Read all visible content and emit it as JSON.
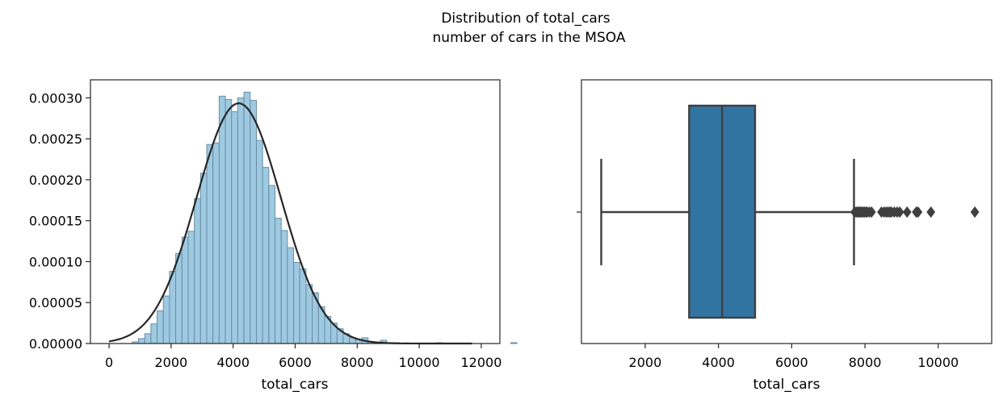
{
  "title": "Distribution of total_cars",
  "subtitle": "number of cars in the MSOA",
  "chart_data": [
    {
      "type": "histogram",
      "xlabel": "total_cars",
      "ylabel": "",
      "xlim": [
        -600,
        12600
      ],
      "ylim": [
        0,
        0.000322
      ],
      "xticks": [
        0,
        2000,
        4000,
        6000,
        8000,
        10000,
        12000
      ],
      "yticks": [
        0,
        5e-05,
        0.0001,
        0.00015,
        0.0002,
        0.00025,
        0.0003
      ],
      "ytick_labels": [
        "0.00000",
        "0.00005",
        "0.00010",
        "0.00015",
        "0.00020",
        "0.00025",
        "0.00030"
      ],
      "xtick_labels": [
        "0",
        "2000",
        "4000",
        "6000",
        "8000",
        "10000",
        "12000"
      ],
      "bin_start": 750,
      "bin_width": 200,
      "density": [
        2e-06,
        6e-06,
        1.2e-05,
        2.4e-05,
        4e-05,
        5.8e-05,
        8.8e-05,
        0.00011,
        0.00013,
        0.000137,
        0.000177,
        0.000208,
        0.000243,
        0.000245,
        0.000302,
        0.000298,
        0.000283,
        0.0003,
        0.000307,
        0.000297,
        0.000248,
        0.000215,
        0.000193,
        0.000153,
        0.000138,
        0.000117,
        9.9e-05,
        9.1e-05,
        7.2e-05,
        6.2e-05,
        4.5e-05,
        3.3e-05,
        2.5e-05,
        1.8e-05,
        1.2e-05,
        7e-06,
        5e-06,
        7e-06,
        2e-06,
        1e-06,
        4e-06,
        1e-06,
        1e-06,
        0.0,
        0.0,
        0.0,
        0.0,
        0.0,
        0.0,
        1e-06,
        0.0,
        0.0,
        0.0,
        0.0,
        0.0,
        0.0,
        0.0,
        0.0,
        0.0,
        0.0,
        0.0,
        1e-06
      ],
      "fit_curve": {
        "distribution": "normal",
        "mean": 4180,
        "std": 1360,
        "x_range": [
          0,
          11700
        ]
      },
      "bar_color": "#9ecae1",
      "bar_edge_color": "#6a8ca3",
      "curve_color": "#262626"
    },
    {
      "type": "boxplot",
      "xlabel": "total_cars",
      "xlim": [
        260,
        11460
      ],
      "xticks": [
        2000,
        4000,
        6000,
        8000,
        10000
      ],
      "xtick_labels": [
        "2000",
        "4000",
        "6000",
        "8000",
        "10000"
      ],
      "whisker_low": 800,
      "q1": 3200,
      "median": 4100,
      "q3": 5000,
      "whisker_high": 7700,
      "outliers": [
        7720,
        7760,
        7800,
        7830,
        7870,
        7900,
        7940,
        7980,
        8020,
        8060,
        8120,
        8180,
        8450,
        8520,
        8580,
        8630,
        8680,
        8720,
        8800,
        8880,
        8950,
        9150,
        9400,
        9450,
        9800,
        11000
      ],
      "box_color": "#3274a1",
      "line_color": "#3f3f3f"
    }
  ]
}
